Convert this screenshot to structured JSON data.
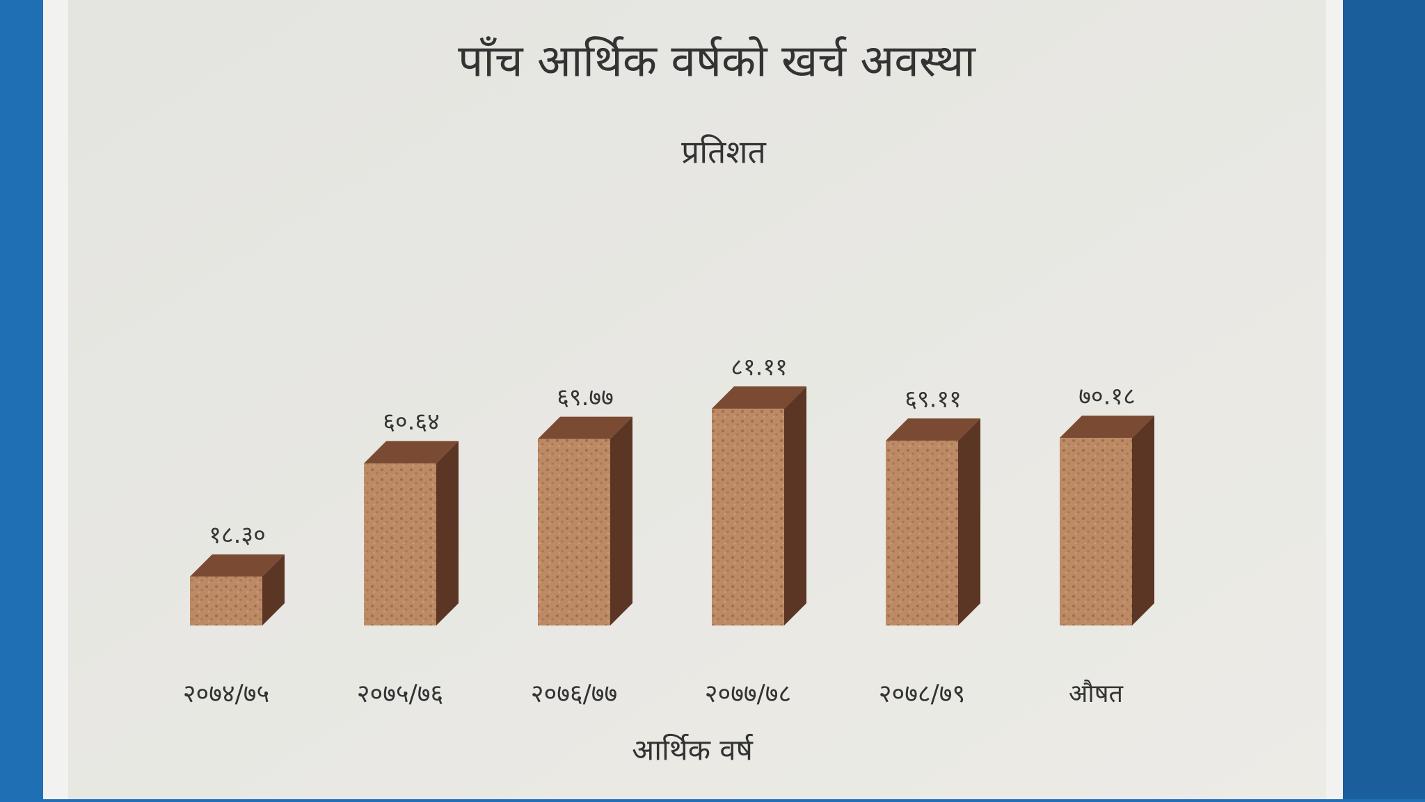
{
  "chart_data": {
    "type": "bar3d",
    "title": "पाँच आर्थिक वर्षको खर्च अवस्था",
    "subtitle": "प्रतिशत",
    "x_label": "आर्थिक वर्ष",
    "categories": [
      "२०७४/७५",
      "२०७५/७६",
      "२०७६/७७",
      "२०७७/७८",
      "२०७८/७९",
      "औषत"
    ],
    "values": [
      18.3,
      60.64,
      69.77,
      81.11,
      69.11,
      70.18
    ],
    "value_labels": [
      "१८.३०",
      "६०.६४",
      "६९.७७",
      "८१.११",
      "६९.११",
      "७०.१८"
    ],
    "color": "#b9825e"
  }
}
